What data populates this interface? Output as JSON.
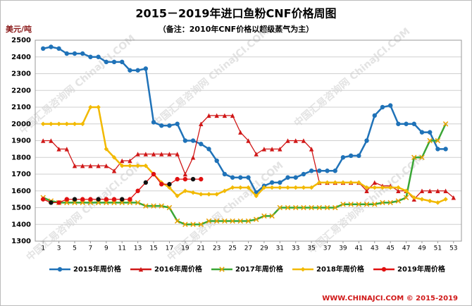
{
  "chart_data": {
    "type": "line",
    "title": "2015－2019年进口鱼粉CNF价格周图",
    "subtitle": "（备注：2010年CNF价格以超级蒸气为主）",
    "y_label": "美元/吨",
    "footer": "WWW.CHINAJCI.COM © 2015-2019",
    "watermark": "中国汇易咨询网 ChinaJCI.COM",
    "x": [
      1,
      2,
      3,
      4,
      5,
      6,
      7,
      8,
      9,
      10,
      11,
      12,
      13,
      14,
      15,
      16,
      17,
      18,
      19,
      20,
      21,
      22,
      23,
      24,
      25,
      26,
      27,
      28,
      29,
      30,
      31,
      32,
      33,
      34,
      35,
      36,
      37,
      38,
      39,
      40,
      41,
      42,
      43,
      44,
      45,
      46,
      47,
      48,
      49,
      50,
      51,
      52,
      53
    ],
    "xlim": [
      0,
      54
    ],
    "xticks": [
      1,
      3,
      5,
      7,
      9,
      11,
      13,
      15,
      17,
      19,
      21,
      23,
      25,
      27,
      29,
      31,
      33,
      35,
      37,
      39,
      41,
      43,
      45,
      47,
      49,
      51,
      53
    ],
    "ylim": [
      1300,
      2500
    ],
    "yticks": [
      1300,
      1400,
      1500,
      1600,
      1700,
      1800,
      1900,
      2000,
      2100,
      2200,
      2300,
      2400,
      2500
    ],
    "grid": true,
    "legend": "bottom",
    "series": [
      {
        "name": "2015年周价格",
        "color": "#1f72b8",
        "marker": "circle",
        "values": [
          2450,
          2460,
          2450,
          2420,
          2420,
          2420,
          2400,
          2400,
          2370,
          2370,
          2370,
          2320,
          2320,
          2330,
          2010,
          1990,
          1990,
          2000,
          1900,
          1900,
          1880,
          1850,
          1780,
          1700,
          1680,
          1680,
          1680,
          1590,
          1630,
          1650,
          1650,
          1680,
          1680,
          1700,
          1720,
          1720,
          1720,
          1720,
          1800,
          1810,
          1810,
          1900,
          2050,
          2100,
          2110,
          2000,
          2000,
          2000,
          1950,
          1950,
          1850,
          1850,
          null
        ]
      },
      {
        "name": "2016年周价格",
        "color": "#d01818",
        "marker": "triangle",
        "values": [
          1900,
          1900,
          1850,
          1850,
          1750,
          1750,
          1750,
          1750,
          1750,
          1720,
          1780,
          1780,
          1820,
          1820,
          1820,
          1820,
          1820,
          1820,
          1700,
          1800,
          2000,
          2050,
          2050,
          2050,
          2050,
          1950,
          1900,
          1820,
          1850,
          1850,
          1850,
          1900,
          1900,
          1900,
          1850,
          1650,
          1650,
          1650,
          1650,
          1650,
          1650,
          1600,
          1650,
          1630,
          1630,
          1600,
          1600,
          1550,
          1600,
          1600,
          1600,
          1600,
          1560
        ]
      },
      {
        "name": "2017年周价格",
        "color": "#3aa635",
        "marker": "x",
        "values": [
          1560,
          1540,
          1530,
          1530,
          1530,
          1530,
          1530,
          1530,
          1530,
          1530,
          1530,
          1530,
          1530,
          1510,
          1510,
          1510,
          1500,
          1420,
          1400,
          1400,
          1400,
          1420,
          1420,
          1420,
          1420,
          1420,
          1420,
          1430,
          1450,
          1450,
          1500,
          1500,
          1500,
          1500,
          1500,
          1500,
          1500,
          1500,
          1520,
          1520,
          1520,
          1520,
          1520,
          1530,
          1530,
          1540,
          1560,
          1800,
          1800,
          1900,
          1900,
          2000,
          null
        ]
      },
      {
        "name": "2018年周价格",
        "color": "#f2b900",
        "marker": "diamond",
        "values": [
          2000,
          2000,
          2000,
          2000,
          2000,
          2000,
          2100,
          2100,
          1850,
          1800,
          1750,
          1750,
          1750,
          1750,
          1700,
          1650,
          1620,
          1570,
          1600,
          1590,
          1580,
          1580,
          1580,
          1600,
          1620,
          1620,
          1620,
          1570,
          1620,
          1620,
          1620,
          1620,
          1620,
          1620,
          1620,
          1650,
          1650,
          1650,
          1650,
          1650,
          1650,
          1620,
          1620,
          1620,
          1620,
          1620,
          1600,
          1560,
          1550,
          1540,
          1530,
          1550,
          null
        ]
      },
      {
        "name": "2019年周价格",
        "color": "#e01010",
        "marker": "circle",
        "values": [
          1550,
          1530,
          1530,
          1550,
          1550,
          1550,
          1550,
          1550,
          1550,
          1550,
          1550,
          1550,
          1600,
          1650,
          1700,
          1640,
          1640,
          1670,
          1670,
          1670,
          1670,
          null,
          null,
          null,
          null,
          null,
          null,
          null,
          null,
          null,
          null,
          null,
          null,
          null,
          null,
          null,
          null,
          null,
          null,
          null,
          null,
          null,
          null,
          null,
          null,
          null,
          null,
          null,
          null,
          null,
          null,
          null,
          null
        ]
      }
    ]
  }
}
